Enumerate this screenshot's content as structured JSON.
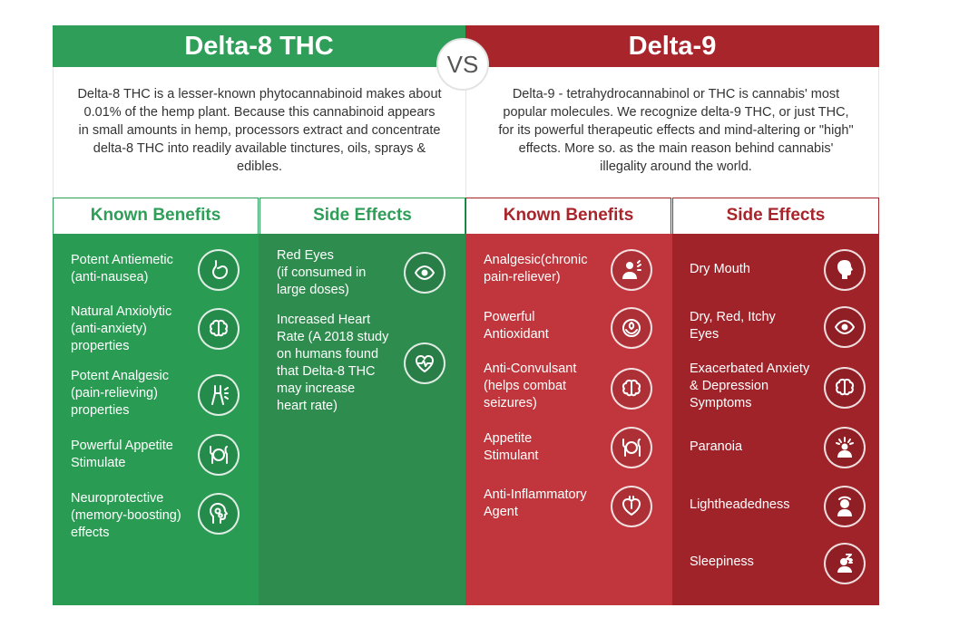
{
  "vs_label": "VS",
  "delta8": {
    "title": "Delta-8 THC",
    "description": "Delta-8 THC is a lesser-known phytocannabinoid makes about 0.01% of the hemp plant. Because this cannabinoid appears in small amounts in hemp, processors extract and concentrate delta-8 THC into readily available tinctures, oils, sprays & edibles.",
    "benefits_title": "Known Benefits",
    "benefits": [
      {
        "label": "Potent Antiemetic\n(anti-nausea)",
        "icon": "stomach-icon"
      },
      {
        "label": "Natural Anxiolytic\n(anti-anxiety)\nproperties",
        "icon": "brain-icon"
      },
      {
        "label": "Potent Analgesic\n(pain-relieving)\nproperties",
        "icon": "joint-pain-icon"
      },
      {
        "label": "Powerful Appetite\nStimulate",
        "icon": "plate-icon"
      },
      {
        "label": "Neuroprotective\n(memory-boosting)\neffects",
        "icon": "head-gears-icon"
      }
    ],
    "side_effects_title": "Side Effects",
    "side_effects": [
      {
        "label": "Red Eyes\n(if consumed in\nlarge doses)",
        "icon": "eye-icon"
      },
      {
        "label": "Increased Heart\nRate (A 2018 study\non humans found\nthat Delta-8 THC\nmay increase\nheart rate)",
        "icon": "heart-rate-icon"
      }
    ],
    "color": "#2f9e58"
  },
  "delta9": {
    "title": "Delta-9",
    "description": "Delta-9 - tetrahydrocannabinol or THC is cannabis' most popular molecules. We recognize delta-9 THC, or just THC, for its powerful therapeutic effects and mind-altering or \"high\" effects. More so. as the main reason behind cannabis' illegality around the world.",
    "benefits_title": "Known Benefits",
    "benefits": [
      {
        "label": "Analgesic(chronic\npain-reliever)",
        "icon": "person-pain-icon"
      },
      {
        "label": "Powerful\nAntioxidant",
        "icon": "antioxidant-icon"
      },
      {
        "label": "Anti-Convulsant\n(helps combat\nseizures)",
        "icon": "brain-icon"
      },
      {
        "label": "Appetite\nStimulant",
        "icon": "plate-icon"
      },
      {
        "label": "Anti-Inflammatory\nAgent",
        "icon": "heart-organ-icon"
      }
    ],
    "side_effects_title": "Side Effects",
    "side_effects": [
      {
        "label": "Dry Mouth",
        "icon": "head-profile-icon"
      },
      {
        "label": "Dry, Red, Itchy\nEyes",
        "icon": "eye-icon"
      },
      {
        "label": "Exacerbated Anxiety\n& Depression\nSymptoms",
        "icon": "brain-icon"
      },
      {
        "label": "Paranoia",
        "icon": "alert-person-icon"
      },
      {
        "label": "Lightheadedness",
        "icon": "dizzy-person-icon"
      },
      {
        "label": "Sleepiness",
        "icon": "sleep-icon"
      }
    ],
    "color": "#a8252b"
  }
}
